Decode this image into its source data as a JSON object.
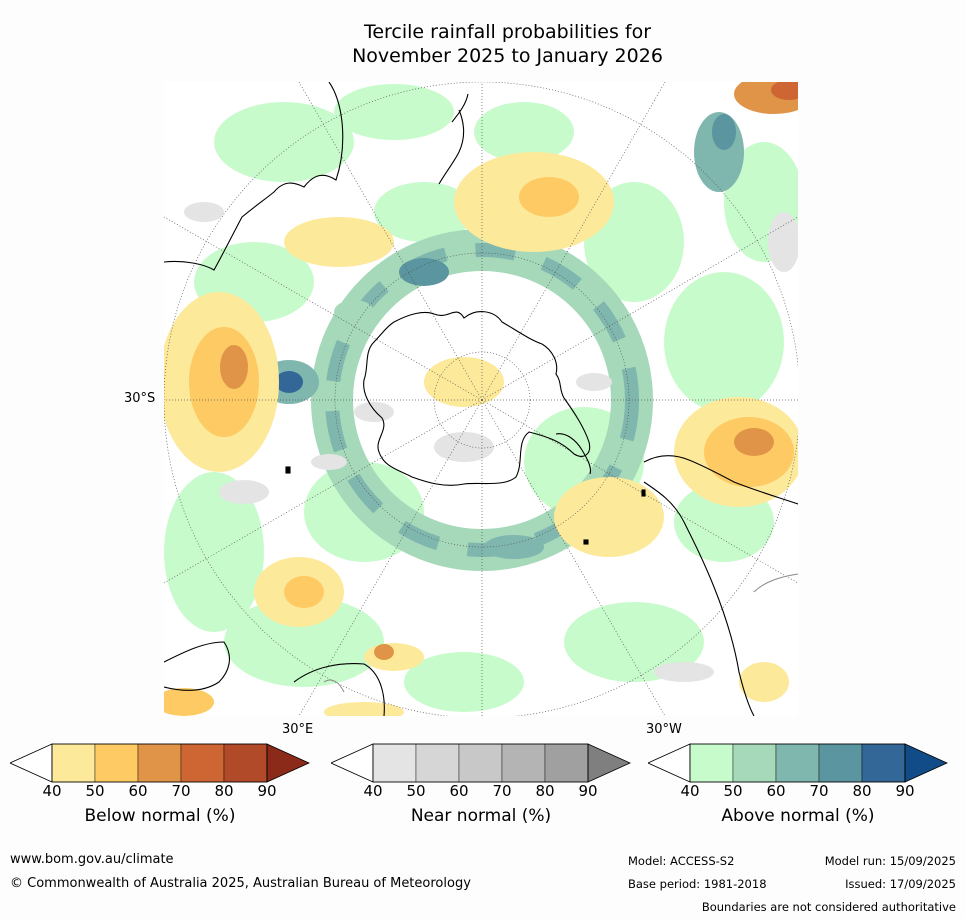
{
  "title": {
    "line1": "Tercile rainfall probabilities for",
    "line2": "November 2025 to January 2026"
  },
  "map": {
    "labels": {
      "lat_30s": "30°S",
      "lon_30e": "30°E",
      "lon_30w": "30°W"
    },
    "colors": {
      "ocean": "#ffffff",
      "coast": "#000000",
      "grid": "#555555"
    }
  },
  "legends": [
    {
      "title": "Below normal (%)",
      "ticks": [
        "40",
        "50",
        "60",
        "70",
        "80",
        "90"
      ],
      "colors": [
        "#ffffff",
        "#fde99a",
        "#fdca64",
        "#e09448",
        "#cd6632",
        "#b14a28",
        "#8c2a1a"
      ]
    },
    {
      "title": "Near normal (%)",
      "ticks": [
        "40",
        "50",
        "60",
        "70",
        "80",
        "90"
      ],
      "colors": [
        "#ffffff",
        "#e4e4e4",
        "#d6d6d6",
        "#c8c8c8",
        "#b4b4b4",
        "#a0a0a0",
        "#7f7f7f"
      ]
    },
    {
      "title": "Above normal (%)",
      "ticks": [
        "40",
        "50",
        "60",
        "70",
        "80",
        "90"
      ],
      "colors": [
        "#ffffff",
        "#c8fbcc",
        "#a5d9b9",
        "#7fb6ae",
        "#5a95a0",
        "#336797",
        "#114c88"
      ]
    }
  ],
  "footer": {
    "url": "www.bom.gov.au/climate",
    "copyright": "© Commonwealth of Australia 2025, Australian Bureau of Meteorology",
    "model": "Model: ACCESS-S2",
    "base_period": "Base period: 1981-2018",
    "model_run": "Model run: 15/09/2025",
    "issued": "Issued: 17/09/2025",
    "disclaimer": "Boundaries are not considered authoritative"
  }
}
